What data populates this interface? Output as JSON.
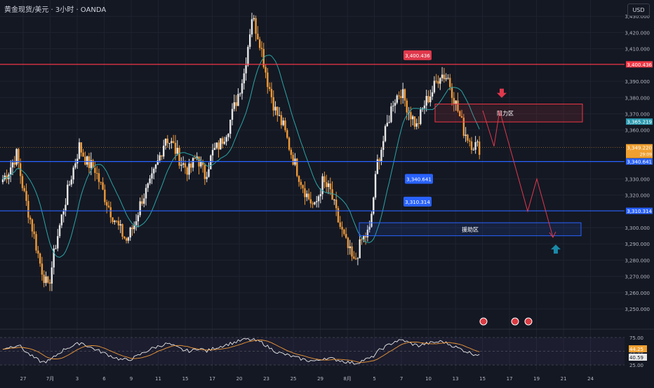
{
  "header": {
    "symbol": "黄金现货/美元",
    "timeframe": "3小时",
    "broker": "OANDA",
    "title": "黄金现货/美元 · 3小时 · OANDA"
  },
  "currency": "USD",
  "colors": {
    "background": "#141823",
    "grid": "#1f2330",
    "candle_up": "#e8e8e8",
    "candle_down": "#f09a38",
    "ma_line": "#2aa5a5",
    "resistance_line": "#f23645",
    "support_line": "#2962ff",
    "arrow_down": "#e0384c",
    "arrow_up": "#1a89a8",
    "rsi_line": "#e8e8e8",
    "rsi_ma": "#f09a38"
  },
  "chart_data": [
    {
      "type": "candlestick",
      "price_axis": {
        "ticks": [
          "3,430.000",
          "3,420.000",
          "3,410.000",
          "3,390.000",
          "3,380.000",
          "3,370.000",
          "3,360.000",
          "3,330.000",
          "3,320.000",
          "3,300.000",
          "3,290.000",
          "3,280.000",
          "3,270.000",
          "3,260.000",
          "3,250.000"
        ],
        "tick_values": [
          3430,
          3420,
          3410,
          3390,
          3380,
          3370,
          3360,
          3330,
          3320,
          3300,
          3290,
          3280,
          3270,
          3260,
          3250
        ],
        "ylim": [
          3244,
          3440
        ]
      },
      "time_axis": {
        "labels": [
          "27",
          "7月",
          "3",
          "6",
          "9",
          "11",
          "15",
          "17",
          "20",
          "23",
          "25",
          "29",
          "8月",
          "5",
          "7",
          "10",
          "13",
          "15",
          "17",
          "19",
          "21",
          "24"
        ]
      },
      "current_price": {
        "value": 3349.22,
        "label": "3,349.220",
        "countdown": "29:09"
      },
      "ma_value": {
        "value": 3365.219,
        "label": "3,365.219"
      },
      "horizontal_levels": [
        {
          "name": "resistance",
          "value": 3400.436,
          "label": "3,400.436",
          "color": "#f23645"
        },
        {
          "name": "support-1",
          "value": 3340.641,
          "label": "3,340.641",
          "color": "#2962ff"
        },
        {
          "name": "support-2",
          "value": 3310.314,
          "label": "3,310.314",
          "color": "#2962ff"
        }
      ],
      "zones": [
        {
          "name": "resistance-zone",
          "label": "阻力区",
          "from": 3365,
          "to": 3376
        },
        {
          "name": "support-zone",
          "label": "援助区",
          "from": 3295,
          "to": 3303
        }
      ],
      "forecast_path": [
        3372,
        3350,
        3372,
        3310,
        3330,
        3294
      ],
      "ohlc_close_path": [
        3328,
        3335,
        3345,
        3320,
        3300,
        3278,
        3262,
        3290,
        3312,
        3332,
        3350,
        3340,
        3336,
        3322,
        3310,
        3300,
        3292,
        3302,
        3318,
        3326,
        3340,
        3356,
        3350,
        3340,
        3335,
        3344,
        3332,
        3346,
        3352,
        3362,
        3378,
        3395,
        3430,
        3415,
        3390,
        3372,
        3362,
        3346,
        3332,
        3320,
        3312,
        3328,
        3322,
        3304,
        3290,
        3278,
        3292,
        3298,
        3340,
        3358,
        3378,
        3384,
        3372,
        3362,
        3376,
        3384,
        3395,
        3392,
        3376,
        3360,
        3352,
        3349
      ]
    },
    {
      "type": "line",
      "name": "RSI",
      "ticks": [
        "75.00",
        "50.00",
        "25.00"
      ],
      "tick_values": [
        75,
        50,
        25
      ],
      "ylim": [
        20,
        80
      ],
      "rsi_label": "44.25",
      "rsi_ma_label": "40.59",
      "rsi_path": [
        55,
        58,
        62,
        48,
        38,
        30,
        33,
        45,
        55,
        60,
        66,
        58,
        52,
        46,
        40,
        35,
        34,
        40,
        48,
        55,
        60,
        64,
        58,
        52,
        50,
        56,
        50,
        56,
        60,
        64,
        68,
        72,
        70,
        66,
        56,
        48,
        44,
        40,
        36,
        33,
        32,
        38,
        36,
        33,
        30,
        28,
        34,
        38,
        52,
        60,
        68,
        70,
        64,
        60,
        64,
        66,
        68,
        62,
        56,
        50,
        45,
        44
      ]
    }
  ]
}
